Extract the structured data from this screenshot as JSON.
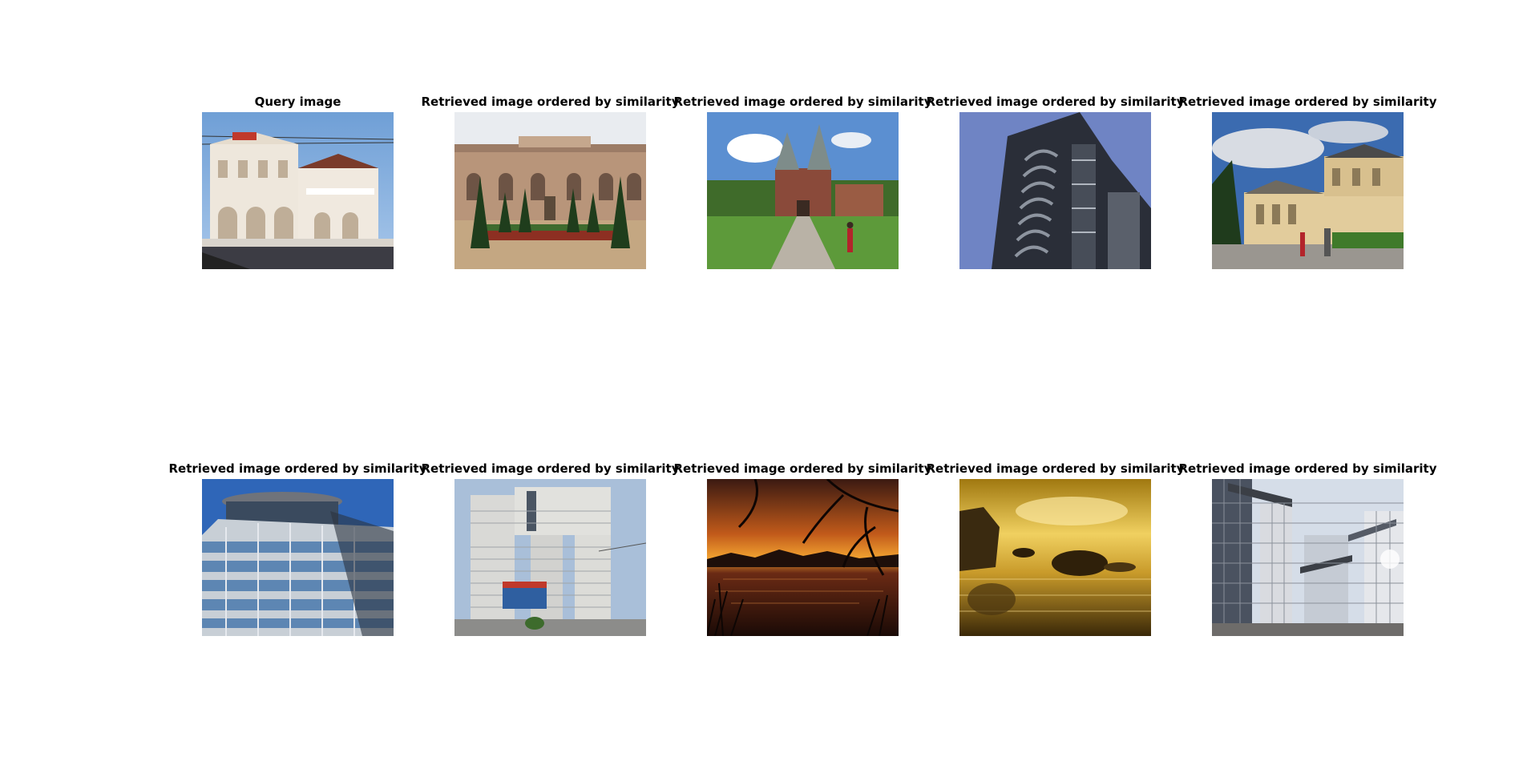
{
  "panels": [
    {
      "title": "Query image"
    },
    {
      "title": "Retrieved image ordered by similarity"
    },
    {
      "title": "Retrieved image ordered by similarity"
    },
    {
      "title": "Retrieved image ordered by similarity"
    },
    {
      "title": "Retrieved image ordered by similarity"
    },
    {
      "title": "Retrieved image ordered by similarity"
    },
    {
      "title": "Retrieved image ordered by similarity"
    },
    {
      "title": "Retrieved image ordered by similarity"
    },
    {
      "title": "Retrieved image ordered by similarity"
    },
    {
      "title": "Retrieved image ordered by similarity"
    }
  ]
}
